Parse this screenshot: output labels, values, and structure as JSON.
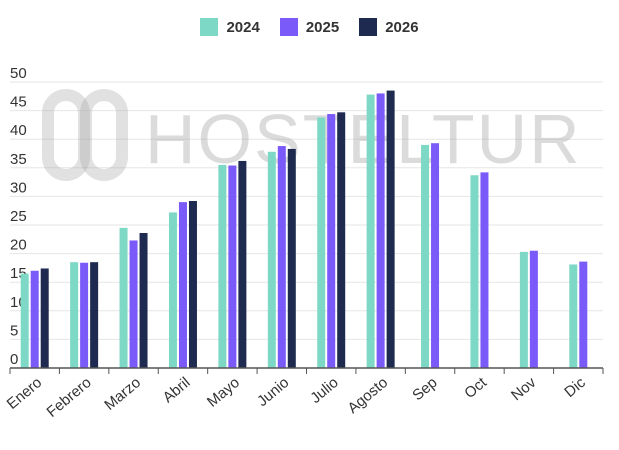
{
  "watermark": "HOSTELTUR",
  "colors": {
    "2024": "#7dd8c5",
    "2025": "#7a5af8",
    "2026": "#1e2a4f"
  },
  "chart_data": {
    "type": "bar",
    "title": "",
    "xlabel": "",
    "ylabel": "",
    "ylim": [
      0,
      50
    ],
    "yticks": [
      0,
      5,
      10,
      15,
      20,
      25,
      30,
      35,
      40,
      45,
      50
    ],
    "grid": true,
    "legend_position": "top-center",
    "categories": [
      "Enero",
      "Febrero",
      "Marzo",
      "Abril",
      "Mayo",
      "Junio",
      "Julio",
      "Agosto",
      "Sep",
      "Oct",
      "Nov",
      "Dic"
    ],
    "series": [
      {
        "name": "2024",
        "color": "#7dd8c5",
        "values": [
          16.5,
          18.5,
          24.5,
          27.2,
          35.5,
          37.8,
          43.8,
          47.8,
          39.0,
          33.7,
          20.3,
          18.1
        ]
      },
      {
        "name": "2025",
        "color": "#7a5af8",
        "values": [
          17.0,
          18.4,
          22.3,
          29.0,
          35.4,
          38.8,
          44.4,
          48.0,
          39.3,
          34.2,
          20.5,
          18.6
        ]
      },
      {
        "name": "2026",
        "color": "#1e2a4f",
        "values": [
          17.4,
          18.5,
          23.6,
          29.2,
          36.2,
          38.3,
          44.7,
          48.5,
          null,
          null,
          null,
          null
        ]
      }
    ]
  }
}
